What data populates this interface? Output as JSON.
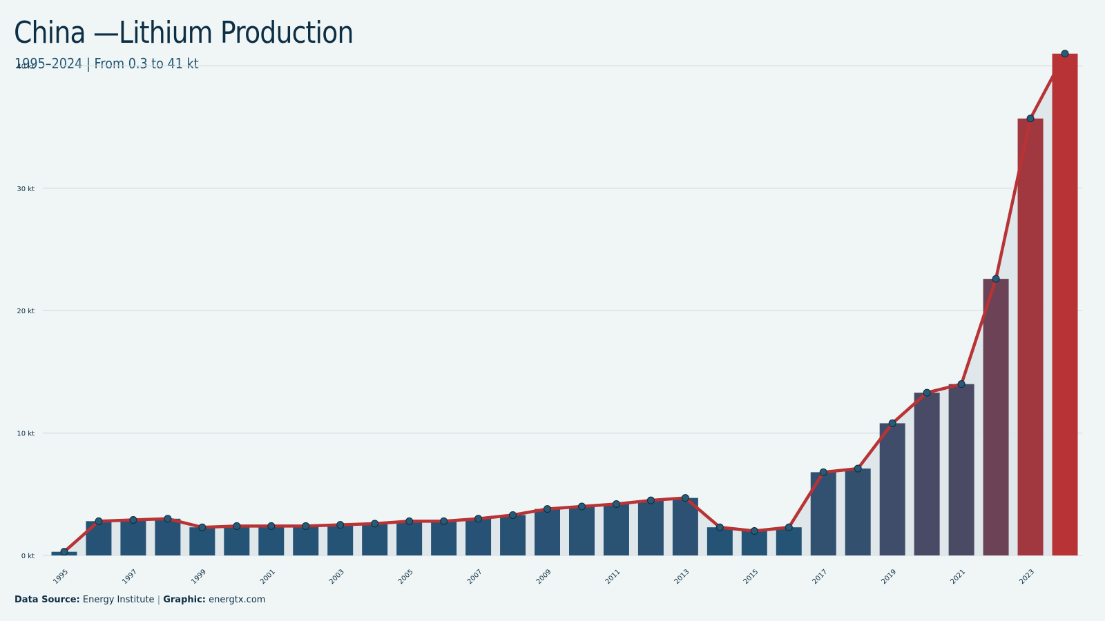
{
  "title": "China —Lithium Production",
  "subtitle": "1995–2024 | From 0.3 to 41 kt",
  "footer": {
    "source_label": "Data Source:",
    "source_value": "Energy Institute",
    "separator": "|",
    "graphic_label": "Graphic:",
    "graphic_value": "energtx.com"
  },
  "colors": {
    "background": "#f0f5f5",
    "bar_low": "#1f5478",
    "bar_high": "#b83335",
    "line": "#b83335",
    "area": "#dde6e9",
    "grid": "#d5dee2",
    "point_fill": "#275b78"
  },
  "chart_data": {
    "type": "bar",
    "x": [
      1995,
      1996,
      1997,
      1998,
      1999,
      2000,
      2001,
      2002,
      2003,
      2004,
      2005,
      2006,
      2007,
      2008,
      2009,
      2010,
      2011,
      2012,
      2013,
      2014,
      2015,
      2016,
      2017,
      2018,
      2019,
      2020,
      2021,
      2022,
      2023,
      2024
    ],
    "values": [
      0.3,
      2.8,
      2.9,
      3.0,
      2.3,
      2.4,
      2.4,
      2.4,
      2.5,
      2.6,
      2.8,
      2.8,
      3.0,
      3.3,
      3.8,
      4.0,
      4.2,
      4.5,
      4.7,
      2.3,
      2.0,
      2.3,
      6.8,
      7.1,
      10.8,
      13.3,
      14.0,
      22.6,
      35.7,
      41.0
    ],
    "overlay": "line-with-markers",
    "unit": "kt",
    "ylim": [
      0,
      42
    ],
    "y_ticks": [
      0,
      10,
      20,
      30,
      40
    ],
    "y_tick_labels": [
      "0 kt",
      "10 kt",
      "20 kt",
      "30 kt",
      "40 kt"
    ],
    "x_tick_labels": [
      "1995",
      "1997",
      "1999",
      "2001",
      "2003",
      "2005",
      "2007",
      "2009",
      "2011",
      "2013",
      "2015",
      "2017",
      "2019",
      "2021",
      "2023"
    ],
    "grid": true,
    "legend": "none"
  }
}
